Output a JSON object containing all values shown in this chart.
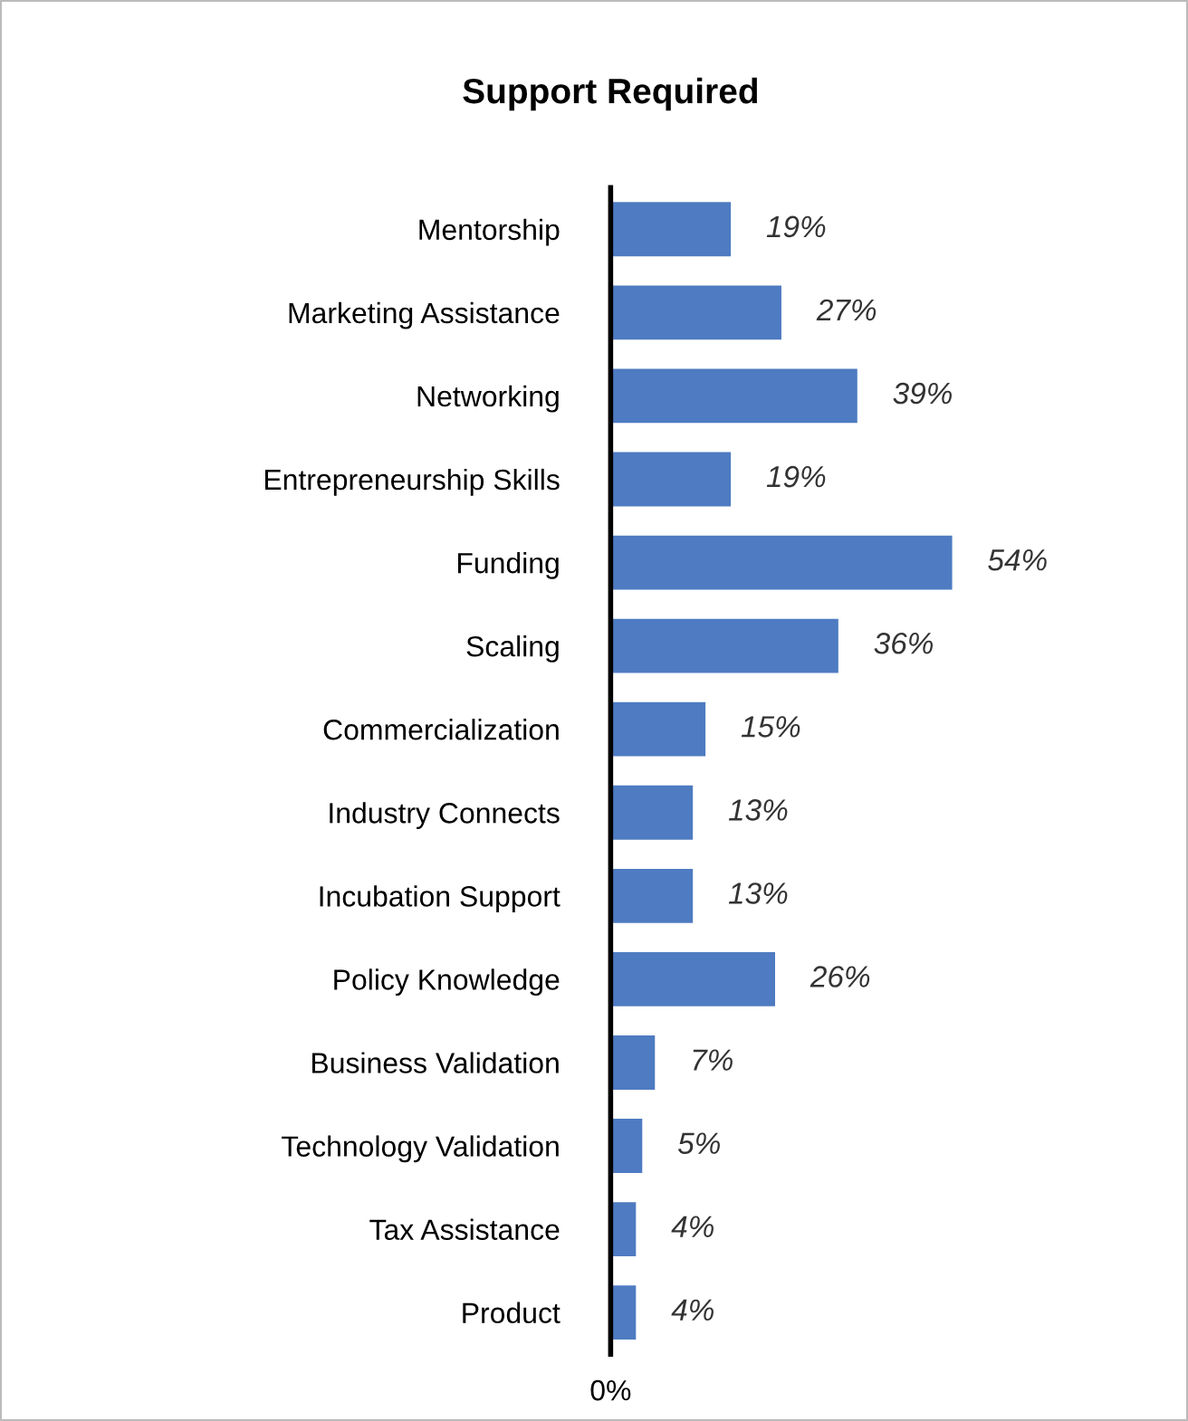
{
  "chart_data": {
    "type": "bar",
    "orientation": "horizontal",
    "title": "Support Required",
    "categories": [
      "Mentorship",
      "Marketing Assistance",
      "Networking",
      "Entrepreneurship Skills",
      "Funding",
      "Scaling",
      "Commercialization",
      "Industry Connects",
      "Incubation Support",
      "Policy Knowledge",
      "Business Validation",
      "Technology Validation",
      "Tax Assistance",
      "Product"
    ],
    "values": [
      19,
      27,
      39,
      19,
      54,
      36,
      15,
      13,
      13,
      26,
      7,
      5,
      4,
      4
    ],
    "value_labels": [
      "19%",
      "27%",
      "39%",
      "19%",
      "54%",
      "36%",
      "15%",
      "13%",
      "13%",
      "26%",
      "7%",
      "5%",
      "4%",
      "4%"
    ],
    "color": "#4e7bc1",
    "annotations": [
      "0%"
    ],
    "grid": false,
    "legend": false
  }
}
